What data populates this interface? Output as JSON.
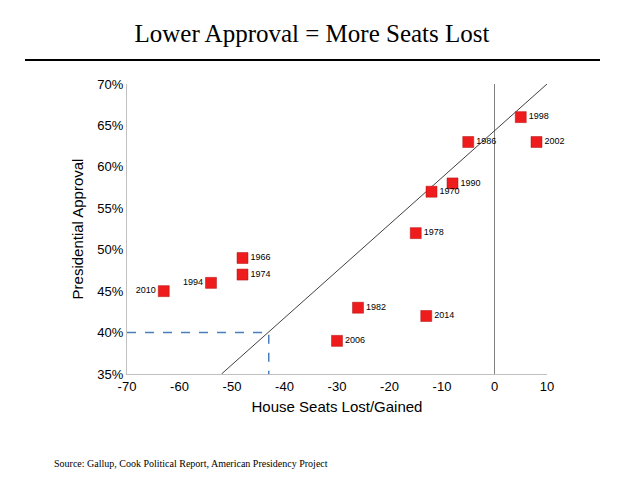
{
  "chart_data": {
    "type": "scatter",
    "title": "Lower Approval = More Seats Lost",
    "x_label": "House Seats Lost/Gained",
    "y_label": "Presidential Approval",
    "source": "Source: Gallup, Cook Political Report, American Presidency Project",
    "point_labels": [
      "1998",
      "1986",
      "2002",
      "1970",
      "1990",
      "1978",
      "1966",
      "1974",
      "1994",
      "2010",
      "1982",
      "2014",
      "2006"
    ],
    "x": [
      5,
      -5,
      8,
      -12,
      -8,
      -15,
      -48,
      -48,
      -54,
      -63,
      -26,
      -13,
      -30
    ],
    "values": [
      66,
      63,
      63,
      57,
      58,
      52,
      49,
      47,
      46,
      45,
      43,
      42,
      39
    ],
    "color": "#ee1c1c",
    "marker": "square",
    "trend_line": {
      "x": [
        -52,
        10
      ],
      "y": [
        35,
        70
      ],
      "color": "#404040",
      "line_style": "solid"
    },
    "reference": {
      "x": [
        -70,
        -43,
        -43
      ],
      "y": [
        40,
        40,
        35
      ],
      "color": "#4a7ebb",
      "line_style": "dash"
    },
    "xlim": [
      -70,
      10
    ],
    "xticks": [
      -70,
      -60,
      -50,
      -40,
      -30,
      -20,
      -10,
      0,
      10
    ],
    "ylim": [
      35,
      70
    ],
    "yticks": [
      {
        "value": 35,
        "label": "35%"
      },
      {
        "value": 40,
        "label": "40%"
      },
      {
        "value": 45,
        "label": "45%"
      },
      {
        "value": 50,
        "label": "50%"
      },
      {
        "value": 55,
        "label": "55%"
      },
      {
        "value": 60,
        "label": "60%"
      },
      {
        "value": 65,
        "label": "65%"
      },
      {
        "value": 70,
        "label": "70%"
      }
    ],
    "grid": false
  }
}
